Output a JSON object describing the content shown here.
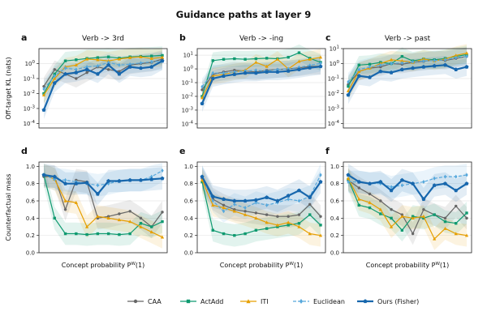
{
  "figure": {
    "title": "Guidance paths at layer 9",
    "xlabel": "Concept probability P",
    "xlabel_sup": "W",
    "xlabel_suffix": "(1)",
    "ylabel_top": "Off-target KL (nats)",
    "ylabel_bottom": "Counterfactual mass"
  },
  "legend": [
    {
      "name": "CAA",
      "color": "#666666",
      "marker": "circle",
      "dash": "solid"
    },
    {
      "name": "ActAdd",
      "color": "#0f9a70",
      "marker": "square",
      "dash": "solid"
    },
    {
      "name": "ITI",
      "color": "#e69f00",
      "marker": "triangle",
      "dash": "solid"
    },
    {
      "name": "Euclidean",
      "color": "#56a8dc",
      "marker": "diamond",
      "dash": "dashed"
    },
    {
      "name": "Ours (Fisher)",
      "color": "#1767ad",
      "marker": "pentagon",
      "dash": "solid"
    }
  ],
  "chart_data": [
    {
      "panel": "a",
      "type": "line",
      "title": "Verb -> 3rd",
      "scale": "log",
      "ylim": [
        5e-05,
        10
      ],
      "yticks": [
        "10^-4",
        "10^-3",
        "10^-2",
        "10^-1",
        "10^0"
      ],
      "x": [
        1,
        2,
        3,
        4,
        5,
        6,
        7,
        8,
        9,
        10,
        11,
        12
      ],
      "series": [
        {
          "name": "CAA",
          "values": [
            0.03,
            0.4,
            0.2,
            0.1,
            0.25,
            0.6,
            0.4,
            0.3,
            0.8,
            1.0,
            1.2,
            2.0
          ]
        },
        {
          "name": "ActAdd",
          "values": [
            0.01,
            0.2,
            1.5,
            1.8,
            2.2,
            2.5,
            2.8,
            2.3,
            2.8,
            3.0,
            3.2,
            3.5
          ]
        },
        {
          "name": "ITI",
          "values": [
            0.008,
            0.1,
            0.6,
            0.8,
            2.0,
            1.8,
            1.5,
            2.0,
            2.5,
            2.8,
            2.2,
            2.6
          ]
        },
        {
          "name": "Euclidean",
          "values": [
            0.02,
            0.15,
            0.5,
            0.4,
            0.6,
            0.7,
            1.2,
            0.8,
            0.9,
            1.1,
            1.3,
            1.5
          ]
        },
        {
          "name": "Ours (Fisher)",
          "values": [
            0.0008,
            0.05,
            0.2,
            0.25,
            0.4,
            0.2,
            0.8,
            0.2,
            0.6,
            0.5,
            0.6,
            1.5
          ]
        }
      ]
    },
    {
      "panel": "b",
      "type": "line",
      "title": "Verb -> -ing",
      "scale": "log",
      "ylim": [
        5e-05,
        30
      ],
      "yticks": [
        "10^-4",
        "10^-3",
        "10^-2",
        "10^-1",
        "10^0",
        "10^1"
      ],
      "x": [
        1,
        2,
        3,
        4,
        5,
        6,
        7,
        8,
        9,
        10,
        11,
        12
      ],
      "series": [
        {
          "name": "CAA",
          "values": [
            0.03,
            0.4,
            0.6,
            0.8,
            0.7,
            0.6,
            0.8,
            0.9,
            1.0,
            1.2,
            1.5,
            1.6
          ]
        },
        {
          "name": "ActAdd",
          "values": [
            0.01,
            4.0,
            5.0,
            5.5,
            5.0,
            5.5,
            6.0,
            5.5,
            7.0,
            15.0,
            6.0,
            3.0
          ]
        },
        {
          "name": "ITI",
          "values": [
            0.008,
            0.3,
            0.4,
            0.6,
            0.8,
            3.0,
            1.5,
            5.0,
            1.0,
            3.5,
            5.0,
            7.0
          ]
        },
        {
          "name": "Euclidean",
          "values": [
            0.05,
            0.5,
            0.5,
            0.6,
            0.7,
            0.8,
            0.7,
            0.9,
            1.0,
            1.3,
            1.8,
            2.5
          ]
        },
        {
          "name": "Ours (Fisher)",
          "values": [
            0.003,
            0.2,
            0.3,
            0.4,
            0.5,
            0.5,
            0.6,
            0.6,
            0.7,
            0.9,
            1.2,
            1.5
          ]
        }
      ]
    },
    {
      "panel": "c",
      "type": "line",
      "title": "Verb -> past",
      "scale": "log",
      "ylim": [
        5e-05,
        10
      ],
      "yticks": [
        "10^-4",
        "10^-3",
        "10^-2",
        "10^-1",
        "10^0",
        "10^1"
      ],
      "x": [
        1,
        2,
        3,
        4,
        5,
        6,
        7,
        8,
        9,
        10,
        11,
        12
      ],
      "series": [
        {
          "name": "CAA",
          "values": [
            0.04,
            0.3,
            0.5,
            0.6,
            1.0,
            0.9,
            1.2,
            1.4,
            1.8,
            1.6,
            2.2,
            3.0
          ]
        },
        {
          "name": "ActAdd",
          "values": [
            0.03,
            0.8,
            0.9,
            1.2,
            1.0,
            3.0,
            1.5,
            2.0,
            1.8,
            2.2,
            3.0,
            4.0
          ]
        },
        {
          "name": "ITI",
          "values": [
            0.015,
            0.3,
            0.5,
            1.0,
            1.8,
            1.5,
            1.2,
            2.0,
            1.5,
            2.0,
            3.5,
            5.0
          ]
        },
        {
          "name": "Euclidean",
          "values": [
            0.06,
            0.4,
            0.6,
            0.8,
            1.0,
            1.1,
            1.3,
            1.5,
            1.6,
            1.8,
            2.5,
            3.0
          ]
        },
        {
          "name": "Ours (Fisher)",
          "values": [
            0.008,
            0.15,
            0.12,
            0.3,
            0.25,
            0.4,
            0.5,
            0.6,
            0.7,
            0.8,
            0.4,
            0.6
          ]
        }
      ]
    },
    {
      "panel": "d",
      "type": "line",
      "scale": "linear",
      "ylim": [
        0,
        1.05
      ],
      "yticks": [
        "0.0",
        "0.2",
        "0.4",
        "0.6",
        "0.8",
        "1.0"
      ],
      "x": [
        1,
        2,
        3,
        4,
        5,
        6,
        7,
        8,
        9,
        10,
        11,
        12
      ],
      "series": [
        {
          "name": "CAA",
          "values": [
            0.88,
            0.88,
            0.5,
            0.84,
            0.82,
            0.4,
            0.42,
            0.45,
            0.48,
            0.4,
            0.3,
            0.47
          ]
        },
        {
          "name": "ActAdd",
          "values": [
            0.9,
            0.4,
            0.22,
            0.22,
            0.21,
            0.22,
            0.22,
            0.21,
            0.22,
            0.34,
            0.3,
            0.36
          ]
        },
        {
          "name": "ITI",
          "values": [
            0.9,
            0.85,
            0.6,
            0.58,
            0.3,
            0.42,
            0.4,
            0.38,
            0.36,
            0.3,
            0.24,
            0.18
          ]
        },
        {
          "name": "Euclidean",
          "values": [
            0.9,
            0.85,
            0.84,
            0.82,
            0.8,
            0.78,
            0.8,
            0.83,
            0.84,
            0.84,
            0.88,
            0.95
          ]
        },
        {
          "name": "Ours (Fisher)",
          "values": [
            0.9,
            0.88,
            0.8,
            0.8,
            0.81,
            0.68,
            0.83,
            0.83,
            0.84,
            0.84,
            0.85,
            0.86
          ]
        }
      ]
    },
    {
      "panel": "e",
      "type": "line",
      "scale": "linear",
      "ylim": [
        0,
        1.05
      ],
      "yticks": [
        "0.0",
        "0.2",
        "0.4",
        "0.6",
        "0.8",
        "1.0"
      ],
      "x": [
        1,
        2,
        3,
        4,
        5,
        6,
        7,
        8,
        9,
        10,
        11,
        12
      ],
      "series": [
        {
          "name": "CAA",
          "values": [
            0.86,
            0.62,
            0.55,
            0.5,
            0.48,
            0.46,
            0.44,
            0.42,
            0.42,
            0.44,
            0.56,
            0.42
          ]
        },
        {
          "name": "ActAdd",
          "values": [
            0.82,
            0.26,
            0.22,
            0.2,
            0.22,
            0.26,
            0.28,
            0.3,
            0.32,
            0.34,
            0.44,
            0.32
          ]
        },
        {
          "name": "ITI",
          "values": [
            0.84,
            0.55,
            0.52,
            0.48,
            0.44,
            0.4,
            0.35,
            0.32,
            0.35,
            0.3,
            0.22,
            0.2
          ]
        },
        {
          "name": "Euclidean",
          "values": [
            0.88,
            0.6,
            0.48,
            0.56,
            0.52,
            0.58,
            0.55,
            0.58,
            0.62,
            0.6,
            0.65,
            0.9
          ]
        },
        {
          "name": "Ours (Fisher)",
          "values": [
            0.88,
            0.65,
            0.62,
            0.6,
            0.6,
            0.61,
            0.64,
            0.6,
            0.66,
            0.72,
            0.64,
            0.82
          ]
        }
      ]
    },
    {
      "panel": "f",
      "type": "line",
      "scale": "linear",
      "ylim": [
        0,
        1.05
      ],
      "yticks": [
        "0.0",
        "0.2",
        "0.4",
        "0.6",
        "0.8",
        "1.0"
      ],
      "x": [
        1,
        2,
        3,
        4,
        5,
        6,
        7,
        8,
        9,
        10,
        11,
        12
      ],
      "series": [
        {
          "name": "CAA",
          "values": [
            0.84,
            0.75,
            0.68,
            0.6,
            0.5,
            0.44,
            0.22,
            0.5,
            0.44,
            0.4,
            0.54,
            0.4
          ]
        },
        {
          "name": "ActAdd",
          "values": [
            0.85,
            0.55,
            0.52,
            0.45,
            0.4,
            0.26,
            0.42,
            0.4,
            0.44,
            0.36,
            0.34,
            0.46
          ]
        },
        {
          "name": "ITI",
          "values": [
            0.86,
            0.62,
            0.58,
            0.5,
            0.3,
            0.42,
            0.4,
            0.42,
            0.16,
            0.28,
            0.22,
            0.2
          ]
        },
        {
          "name": "Euclidean",
          "values": [
            0.82,
            0.82,
            0.8,
            0.8,
            0.76,
            0.78,
            0.8,
            0.82,
            0.86,
            0.88,
            0.88,
            0.9
          ]
        },
        {
          "name": "Ours (Fisher)",
          "values": [
            0.9,
            0.82,
            0.8,
            0.82,
            0.72,
            0.84,
            0.8,
            0.62,
            0.78,
            0.8,
            0.72,
            0.8
          ]
        }
      ]
    }
  ]
}
